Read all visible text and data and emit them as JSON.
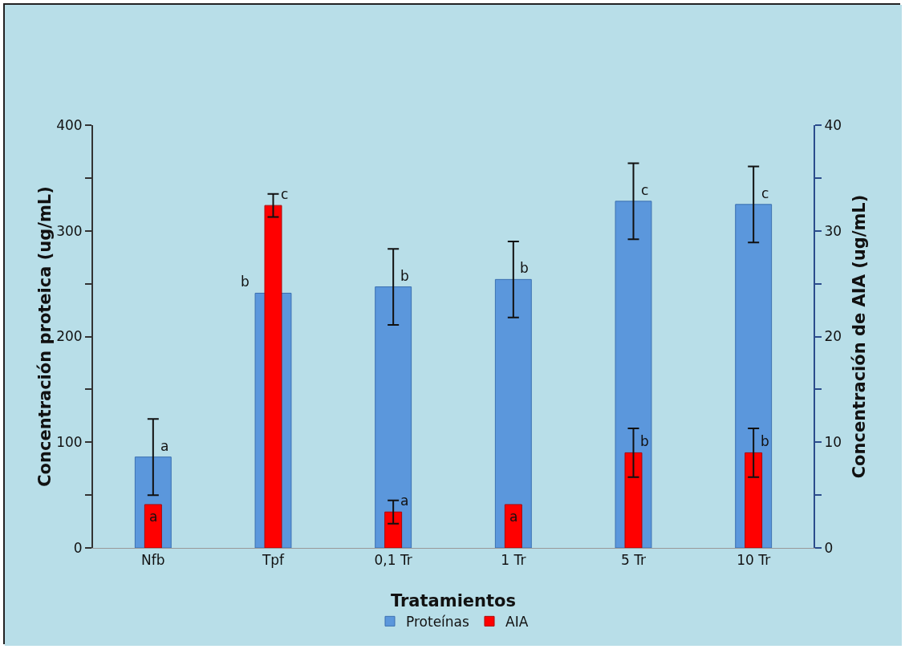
{
  "chart_data": {
    "type": "bar",
    "xlabel": "Tratamientos",
    "ylabel": "Concentración proteica (ug/mL)",
    "y2label": "Concentración de AIA (ug/mL)",
    "categories": [
      "Nfb",
      "Tpf",
      "0,1 Tr",
      "1 Tr",
      "5 Tr",
      "10 Tr"
    ],
    "series": [
      {
        "name": "Proteínas",
        "color": "#5b97dc",
        "values": [
          86,
          241,
          247,
          254,
          328,
          325
        ],
        "errors": [
          36,
          null,
          36,
          36,
          36,
          36
        ],
        "value_labels": [
          "a",
          "b",
          "b",
          "b",
          "c",
          "c"
        ]
      },
      {
        "name": "AIA",
        "color": "#ff0000",
        "axis": "y2",
        "values": [
          4.1,
          32.4,
          3.4,
          4.1,
          9.0,
          9.0
        ],
        "errors": [
          null,
          1.1,
          1.1,
          null,
          2.3,
          2.3
        ],
        "value_labels": [
          "a",
          "c",
          "a",
          "a",
          "b",
          "b"
        ]
      }
    ],
    "ylim": [
      0,
      400
    ],
    "yticks": [
      0,
      {
        "value": 50,
        "label": null
      },
      100,
      {
        "value": 150,
        "label": null
      },
      200,
      {
        "value": 250,
        "label": null
      },
      300,
      {
        "value": 350,
        "label": null
      },
      400
    ],
    "y2lim": [
      0,
      40
    ],
    "y2ticks": [
      0,
      {
        "value": 5,
        "label": null
      },
      10,
      {
        "value": 15,
        "label": null
      },
      20,
      {
        "value": 25,
        "label": null
      },
      30,
      {
        "value": 35,
        "label": null
      },
      40
    ],
    "grid": false,
    "legend": "bottom"
  }
}
